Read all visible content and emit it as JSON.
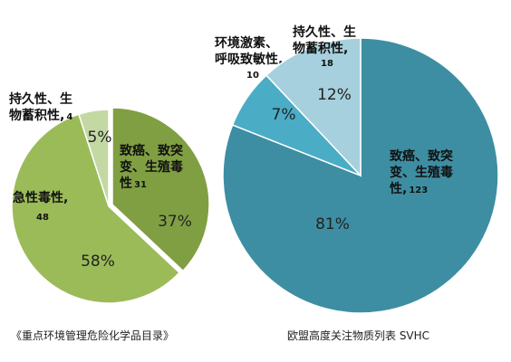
{
  "chart_data": [
    {
      "type": "pie",
      "caption": "《重点环境管理危险化学品目录》",
      "colors": [
        "#809f43",
        "#9bbb59",
        "#c4d8a4"
      ],
      "slices": [
        {
          "name_lines": [
            "致癌、致突",
            "变、生殖毒",
            "性"
          ],
          "count": "31",
          "percent_label": "37%",
          "value": 37
        },
        {
          "name_lines": [
            "急性毒性,"
          ],
          "count": "48",
          "percent_label": "58%",
          "value": 58
        },
        {
          "name_lines": [
            "持久性、生",
            "物蓄积性,"
          ],
          "count": "4",
          "percent_label": "5%",
          "value": 5
        }
      ]
    },
    {
      "type": "pie",
      "caption": "欧盟高度关注物质列表 SVHC",
      "colors": [
        "#3d8ea2",
        "#4bacc6",
        "#a6d0dd"
      ],
      "slices": [
        {
          "name_lines": [
            "致癌、致突",
            "变、生殖毒",
            "性,"
          ],
          "count": "123",
          "percent_label": "81%",
          "value": 81
        },
        {
          "name_lines": [
            "环境激素、",
            "呼吸致敏性,"
          ],
          "count": "10",
          "percent_label": "7%",
          "value": 7
        },
        {
          "name_lines": [
            "持久性、生",
            "物蓄积性,"
          ],
          "count": "18",
          "percent_label": "12%",
          "value": 12
        }
      ]
    }
  ]
}
